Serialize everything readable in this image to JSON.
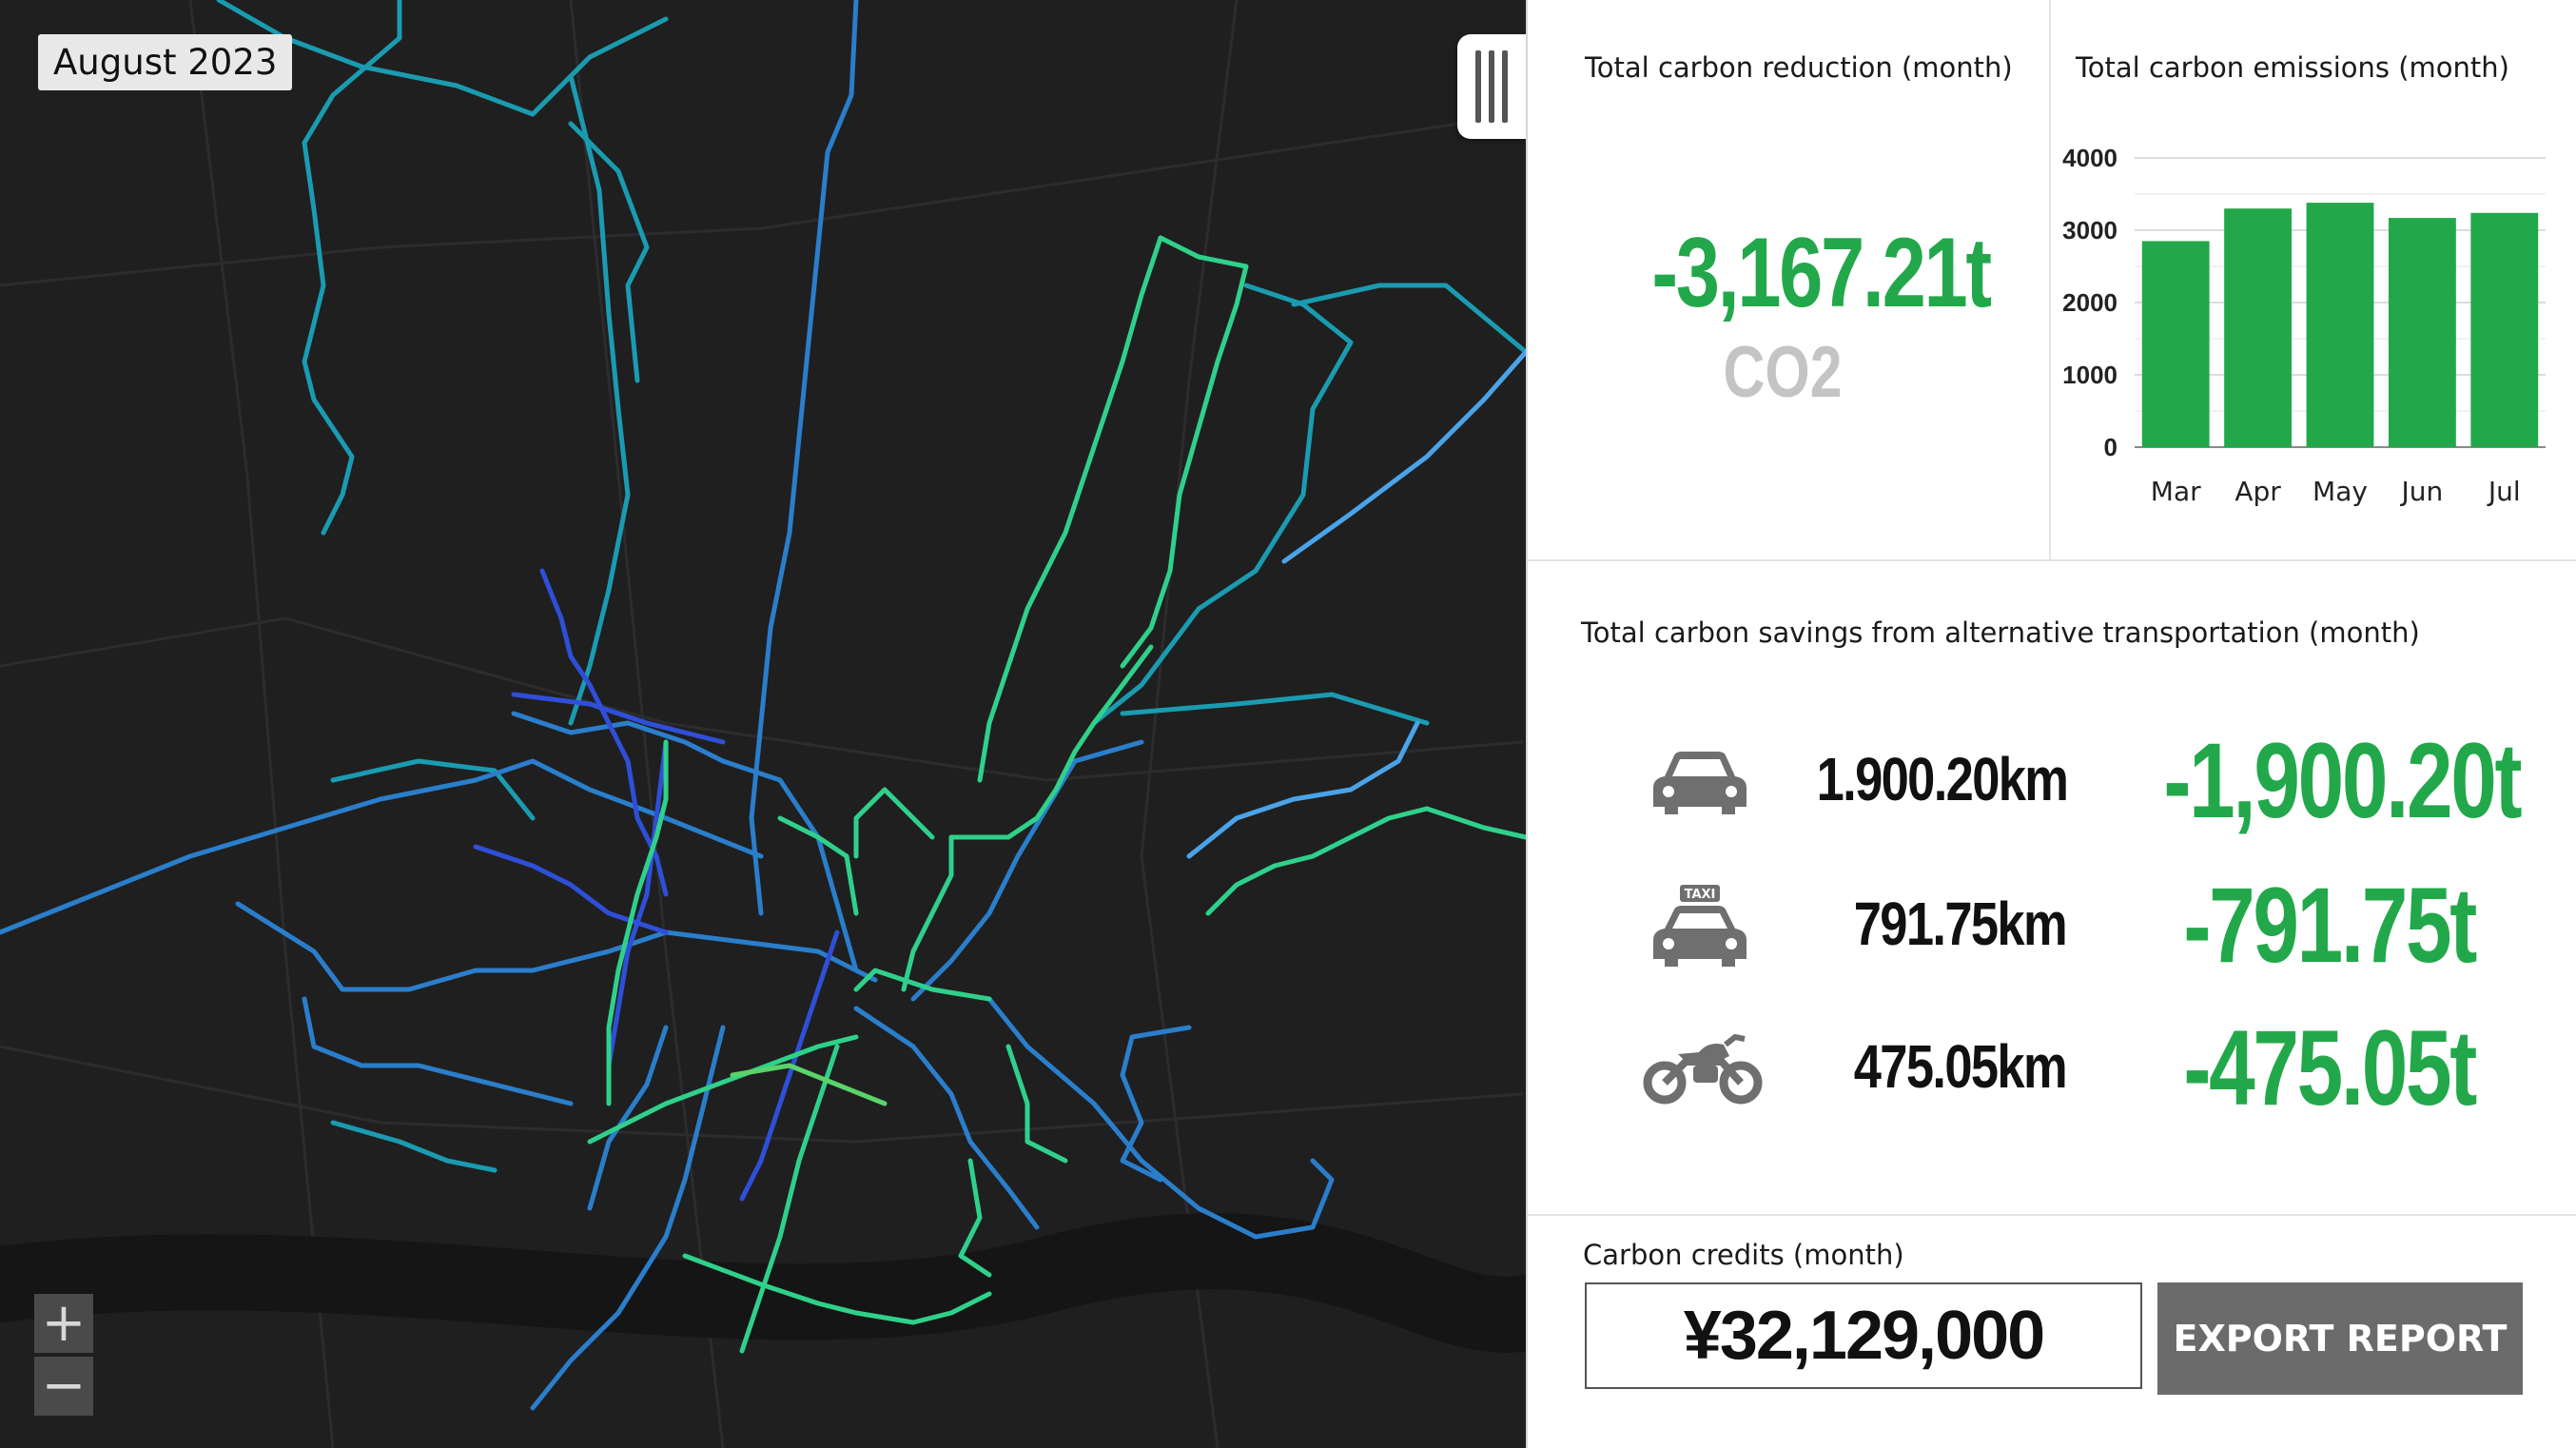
{
  "map": {
    "date_label": "August 2023",
    "zoom_in_label": "+",
    "zoom_out_label": "−"
  },
  "reduction": {
    "title": "Total carbon reduction (month)",
    "value": "-3,167.21t",
    "unit": "CO2"
  },
  "emissions": {
    "title": "Total carbon emissions (month)"
  },
  "chart_data": {
    "type": "bar",
    "title": "Total carbon emissions (month)",
    "categories": [
      "Mar",
      "Apr",
      "May",
      "Jun",
      "Jul"
    ],
    "values": [
      2850,
      3300,
      3380,
      3170,
      3240
    ],
    "yticks": [
      0,
      1000,
      2000,
      3000,
      4000
    ],
    "ylim": [
      0,
      4000
    ],
    "bar_color": "#22a84a",
    "grid": true,
    "xlabel": "",
    "ylabel": ""
  },
  "savings": {
    "title": "Total carbon savings from alternative transportation (month)",
    "items": [
      {
        "vehicle": "car-icon",
        "distance": "1.900.20km",
        "saving": "-1,900.20t"
      },
      {
        "vehicle": "taxi-icon",
        "taxi_label": "TAXI",
        "distance": "791.75km",
        "saving": "-791.75t"
      },
      {
        "vehicle": "motorcycle-icon",
        "distance": "475.05km",
        "saving": "-475.05t"
      }
    ]
  },
  "credits": {
    "title": "Carbon credits (month)",
    "value": "¥32,129,000",
    "export_label": "EXPORT REPORT"
  },
  "colors": {
    "accent_green": "#22a84a",
    "map_bg": "#1f1f20",
    "button_gray": "#6b6b6b"
  }
}
